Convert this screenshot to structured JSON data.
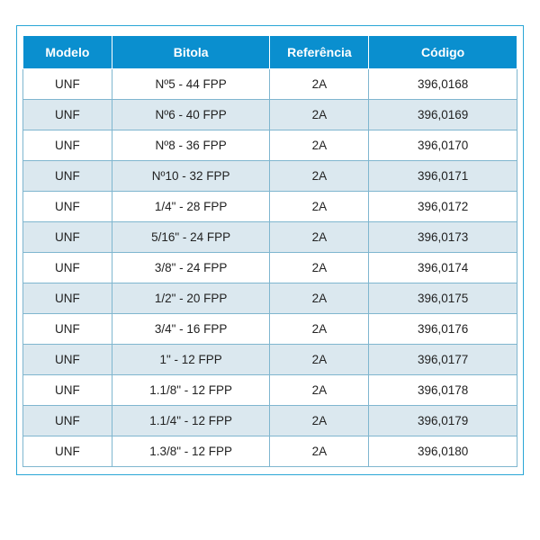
{
  "table": {
    "type": "table",
    "header_bg": "#0a8fcf",
    "header_text_color": "#ffffff",
    "header_fontsize": 14,
    "body_fontsize": 13.5,
    "body_text_color": "#222222",
    "row_colors": [
      "#ffffff",
      "#dbe8ef"
    ],
    "border_color": "#7fb6cf",
    "panel_border_color": "#2aa6d6",
    "column_widths_pct": [
      18,
      32,
      20,
      30
    ],
    "columns": [
      "Modelo",
      "Bitola",
      "Referência",
      "Código"
    ],
    "rows": [
      [
        "UNF",
        "Nº5 - 44 FPP",
        "2A",
        "396,0168"
      ],
      [
        "UNF",
        "Nº6 - 40 FPP",
        "2A",
        "396,0169"
      ],
      [
        "UNF",
        "Nº8 - 36 FPP",
        "2A",
        "396,0170"
      ],
      [
        "UNF",
        "Nº10 - 32 FPP",
        "2A",
        "396,0171"
      ],
      [
        "UNF",
        "1/4\" - 28 FPP",
        "2A",
        "396,0172"
      ],
      [
        "UNF",
        "5/16\" - 24 FPP",
        "2A",
        "396,0173"
      ],
      [
        "UNF",
        "3/8\" - 24 FPP",
        "2A",
        "396,0174"
      ],
      [
        "UNF",
        "1/2\" - 20 FPP",
        "2A",
        "396,0175"
      ],
      [
        "UNF",
        "3/4\" - 16 FPP",
        "2A",
        "396,0176"
      ],
      [
        "UNF",
        "1\" - 12 FPP",
        "2A",
        "396,0177"
      ],
      [
        "UNF",
        "1.1/8\" - 12 FPP",
        "2A",
        "396,0178"
      ],
      [
        "UNF",
        "1.1/4\" - 12 FPP",
        "2A",
        "396,0179"
      ],
      [
        "UNF",
        "1.3/8\" - 12 FPP",
        "2A",
        "396,0180"
      ]
    ]
  }
}
